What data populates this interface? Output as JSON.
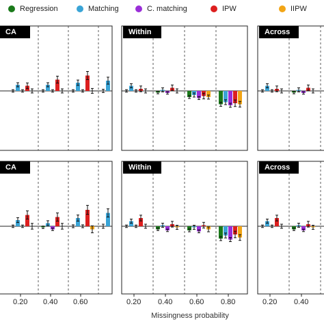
{
  "legend": [
    {
      "name": "Regression",
      "color": "#1a7a1a"
    },
    {
      "name": "Matching",
      "color": "#3aa4d6"
    },
    {
      "name": "C. matching",
      "color": "#9a2ed8"
    },
    {
      "name": "IPW",
      "color": "#dd1f1f"
    },
    {
      "name": "IIPW",
      "color": "#f2a516"
    }
  ],
  "chart_data": {
    "type": "bar",
    "xlabel": "Missingness probability",
    "categories": [
      "0.20",
      "0.40",
      "0.60",
      "0.80"
    ],
    "series_names": [
      "Regression",
      "Matching",
      "C. matching",
      "IPW",
      "IIPW"
    ],
    "grid": "dashed vertical separators between categories",
    "panels": [
      {
        "label": "CA",
        "row": 1,
        "col": 1,
        "values": [
          [
            0.0,
            0.3,
            0.0,
            0.25,
            0.0
          ],
          [
            0.0,
            0.3,
            0.0,
            0.55,
            0.0
          ],
          [
            0.0,
            0.4,
            0.0,
            0.75,
            0.0
          ],
          [
            0.0,
            0.5,
            0.0,
            1.3,
            -0.1
          ]
        ],
        "errors": [
          [
            0.06,
            0.1,
            0.06,
            0.14,
            0.1
          ],
          [
            0.06,
            0.1,
            0.06,
            0.17,
            0.1
          ],
          [
            0.06,
            0.13,
            0.06,
            0.2,
            0.12
          ],
          [
            0.08,
            0.17,
            0.08,
            0.26,
            0.14
          ]
        ]
      },
      {
        "label": "Within",
        "row": 1,
        "col": 2,
        "values": [
          [
            0.0,
            0.25,
            0.0,
            0.1,
            0.0
          ],
          [
            -0.08,
            0.05,
            -0.1,
            0.15,
            0.0
          ],
          [
            -0.3,
            -0.2,
            -0.35,
            -0.25,
            -0.3
          ],
          [
            -0.65,
            -0.55,
            -0.7,
            -0.6,
            -0.65
          ]
        ],
        "errors": [
          [
            0.06,
            0.1,
            0.06,
            0.14,
            0.1
          ],
          [
            0.06,
            0.1,
            0.06,
            0.14,
            0.1
          ],
          [
            0.07,
            0.1,
            0.07,
            0.14,
            0.1
          ],
          [
            0.1,
            0.12,
            0.1,
            0.16,
            0.14
          ]
        ]
      },
      {
        "label": "Across",
        "row": 1,
        "col": 3,
        "values": [
          [
            0.0,
            0.25,
            0.0,
            0.1,
            0.0
          ],
          [
            -0.08,
            0.05,
            -0.1,
            0.15,
            0.0
          ],
          [
            0.0,
            0.0,
            0.0,
            0.0,
            0.0
          ],
          [
            0.0,
            0.0,
            0.0,
            0.0,
            0.0
          ]
        ],
        "errors": [
          [
            0.06,
            0.1,
            0.06,
            0.14,
            0.1
          ],
          [
            0.06,
            0.1,
            0.06,
            0.14,
            0.1
          ],
          [
            0,
            0,
            0,
            0,
            0
          ],
          [
            0,
            0,
            0,
            0,
            0
          ]
        ]
      },
      {
        "label": "CA",
        "row": 2,
        "col": 1,
        "values": [
          [
            0.0,
            0.3,
            0.0,
            0.55,
            0.0
          ],
          [
            -0.05,
            0.15,
            -0.15,
            0.45,
            0.0
          ],
          [
            0.0,
            0.4,
            0.0,
            0.8,
            -0.15
          ],
          [
            0.0,
            0.65,
            0.4,
            1.2,
            -0.25
          ]
        ],
        "errors": [
          [
            0.06,
            0.12,
            0.06,
            0.2,
            0.14
          ],
          [
            0.06,
            0.12,
            0.06,
            0.2,
            0.14
          ],
          [
            0.07,
            0.15,
            0.07,
            0.22,
            0.17
          ],
          [
            0.1,
            0.2,
            0.12,
            0.3,
            0.2
          ]
        ]
      },
      {
        "label": "Within",
        "row": 2,
        "col": 2,
        "values": [
          [
            0.0,
            0.25,
            0.0,
            0.4,
            0.0
          ],
          [
            -0.15,
            0.05,
            -0.2,
            0.1,
            -0.05
          ],
          [
            -0.2,
            -0.05,
            -0.25,
            0.05,
            -0.15
          ],
          [
            -0.6,
            -0.45,
            -0.65,
            -0.4,
            -0.55
          ]
        ],
        "errors": [
          [
            0.06,
            0.1,
            0.06,
            0.14,
            0.1
          ],
          [
            0.06,
            0.1,
            0.06,
            0.14,
            0.1
          ],
          [
            0.07,
            0.1,
            0.07,
            0.14,
            0.12
          ],
          [
            0.1,
            0.12,
            0.1,
            0.16,
            0.14
          ]
        ]
      },
      {
        "label": "Across",
        "row": 2,
        "col": 3,
        "values": [
          [
            0.0,
            0.25,
            0.0,
            0.4,
            0.0
          ],
          [
            -0.15,
            0.05,
            -0.2,
            0.1,
            -0.05
          ],
          [
            0.0,
            0.0,
            0.0,
            0.0,
            0.0
          ],
          [
            0.0,
            0.0,
            0.0,
            0.0,
            0.0
          ]
        ],
        "errors": [
          [
            0.06,
            0.1,
            0.06,
            0.14,
            0.1
          ],
          [
            0.06,
            0.1,
            0.06,
            0.14,
            0.1
          ],
          [
            0,
            0,
            0,
            0,
            0
          ],
          [
            0,
            0,
            0,
            0,
            0
          ]
        ]
      }
    ]
  }
}
